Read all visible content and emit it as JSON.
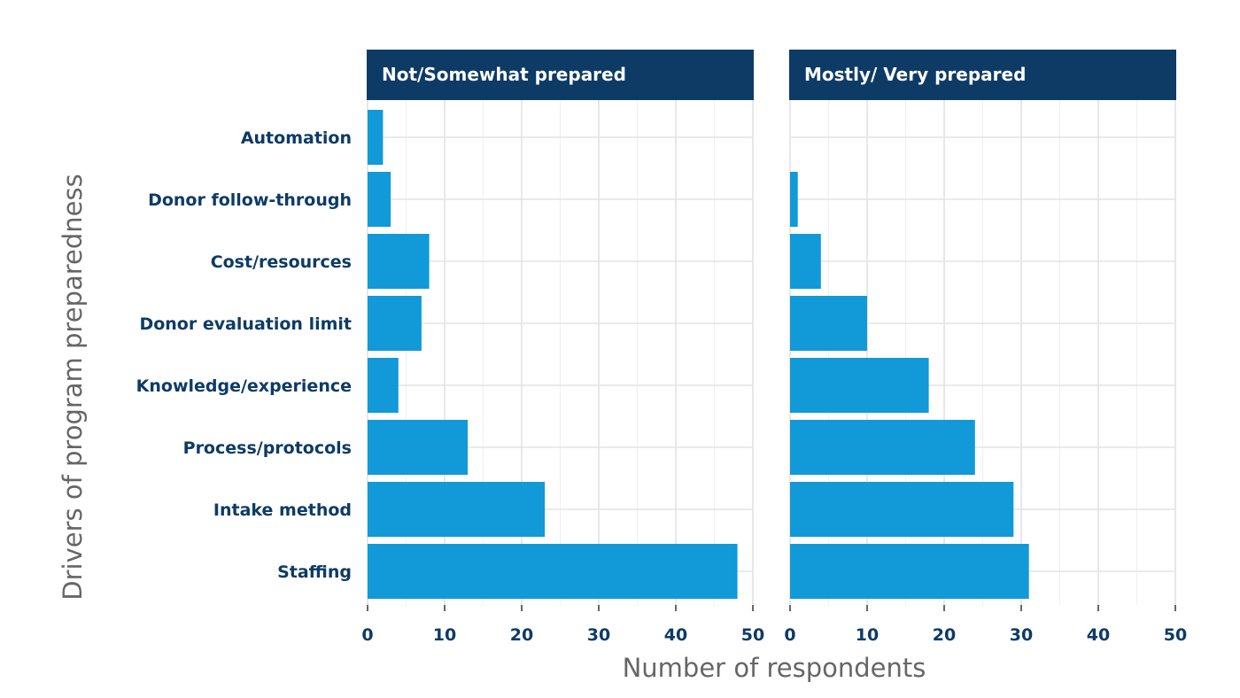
{
  "chart_data": {
    "type": "bar",
    "orientation": "horizontal",
    "xlabel": "Number of respondents",
    "ylabel": "Drivers of program preparedness",
    "xlim": [
      0,
      50
    ],
    "xticks": [
      0,
      10,
      20,
      30,
      40,
      50
    ],
    "grid": true,
    "categories": [
      "Automation",
      "Donor follow-through",
      "Cost/resources",
      "Donor evaluation limit",
      "Knowledge/experience",
      "Process/protocols",
      "Intake method",
      "Staffing"
    ],
    "panels": [
      {
        "label": "Not/Somewhat prepared",
        "values": [
          2,
          3,
          8,
          7,
          4,
          13,
          23,
          48
        ]
      },
      {
        "label": "Mostly/ Very prepared",
        "values": [
          0,
          1,
          4,
          10,
          18,
          24,
          29,
          31
        ]
      }
    ],
    "colors": {
      "bar": "#1199d8",
      "strip": "#0d3b66",
      "label": "#0d3b66",
      "grid": "#e5e5e5"
    }
  }
}
